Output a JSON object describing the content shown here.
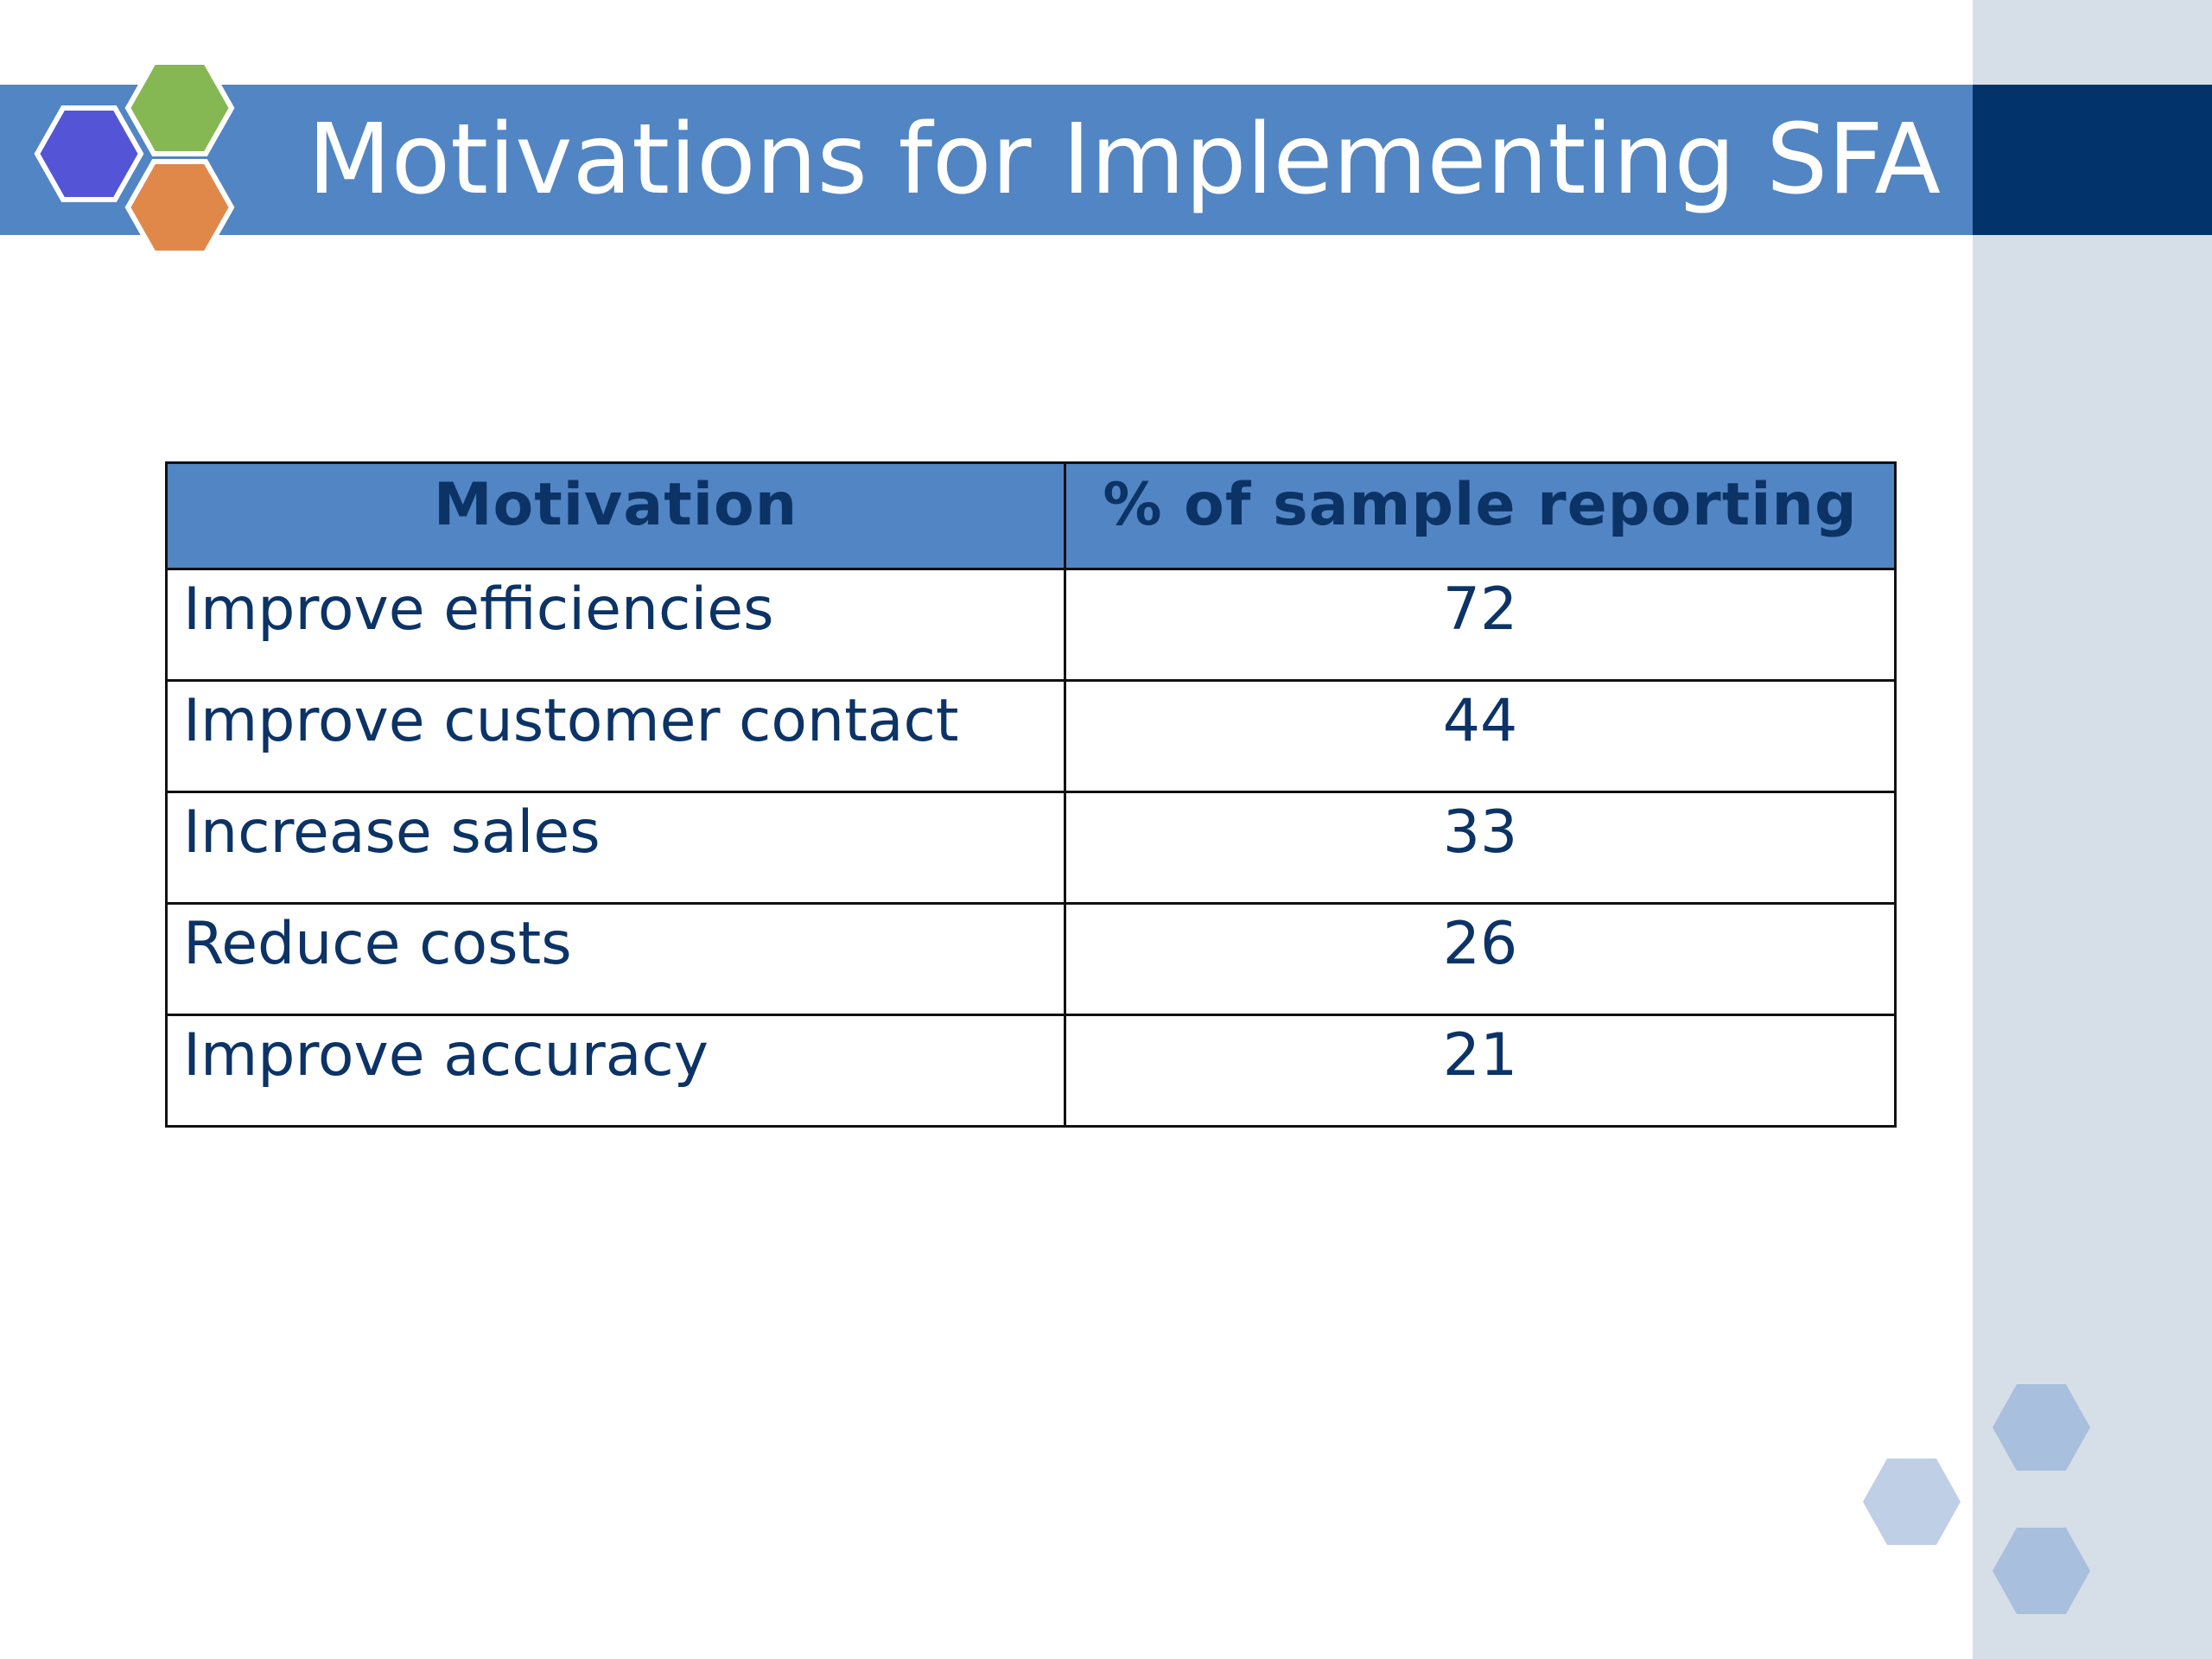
{
  "slide": {
    "title": "Motivations for Implementing SFA"
  },
  "colors": {
    "title_bar": "#5285c3",
    "title_bar_dark": "#02336a",
    "side_panel": "#d6dee8",
    "text": "#0c3366",
    "hex_purple": "#5355d6",
    "hex_green": "#85b853",
    "hex_orange": "#e0874a"
  },
  "table": {
    "headers": [
      "Motivation",
      "% of sample reporting"
    ],
    "rows": [
      {
        "motivation": "Improve efficiencies",
        "percent": "72"
      },
      {
        "motivation": "Improve customer contact",
        "percent": "44"
      },
      {
        "motivation": "Increase sales",
        "percent": "33"
      },
      {
        "motivation": "Reduce costs",
        "percent": "26"
      },
      {
        "motivation": "Improve accuracy",
        "percent": "21"
      }
    ]
  },
  "icons": {
    "logo": "hexagon-cluster-icon",
    "decoration": "hexagon-decoration-icon"
  }
}
